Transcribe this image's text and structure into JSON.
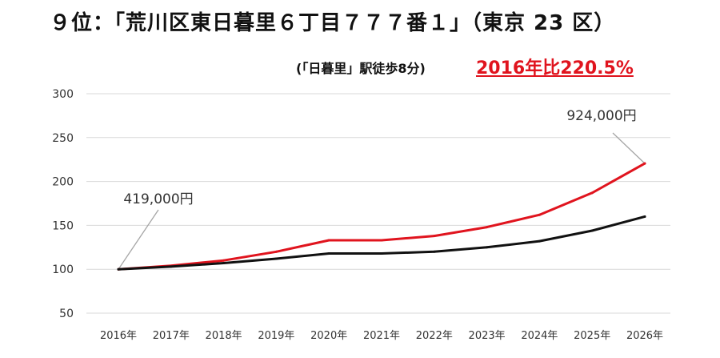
{
  "title": "９位：｢荒川区東日暮里６丁目７７７番１｣（東京 23 区）",
  "subtitle": "(「日暮里」駅徒歩8分)",
  "highlight": "2016年比220.5%",
  "chart_data": {
    "type": "line",
    "categories": [
      "2016年",
      "2017年",
      "2018年",
      "2019年",
      "2020年",
      "2021年",
      "2022年",
      "2023年",
      "2024年",
      "2025年",
      "2026年"
    ],
    "ylim": [
      50,
      300
    ],
    "yticks": [
      50,
      100,
      150,
      200,
      250,
      300
    ],
    "grid": true,
    "series": [
      {
        "color": "#e0141e",
        "values": [
          100,
          104,
          110,
          120,
          133,
          133,
          138,
          148,
          162,
          187,
          220.5
        ]
      },
      {
        "color": "#111111",
        "values": [
          100,
          103,
          107,
          112,
          118,
          118,
          120,
          125,
          132,
          144,
          160
        ]
      }
    ],
    "annotations": [
      {
        "text": "419,000円",
        "category": "2016年",
        "value": 100
      },
      {
        "text": "924,000円",
        "category": "2026年",
        "value": 220.5
      }
    ]
  }
}
